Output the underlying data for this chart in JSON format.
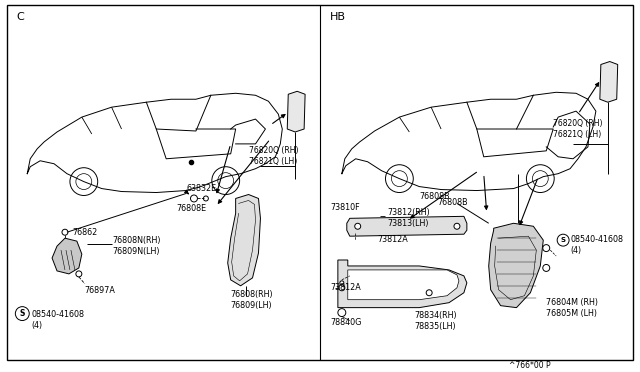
{
  "bg_color": "#ffffff",
  "line_color": "#000000",
  "text_color": "#000000",
  "left_panel_label": "C",
  "right_panel_label": "HB",
  "footer": "^766*00 P"
}
